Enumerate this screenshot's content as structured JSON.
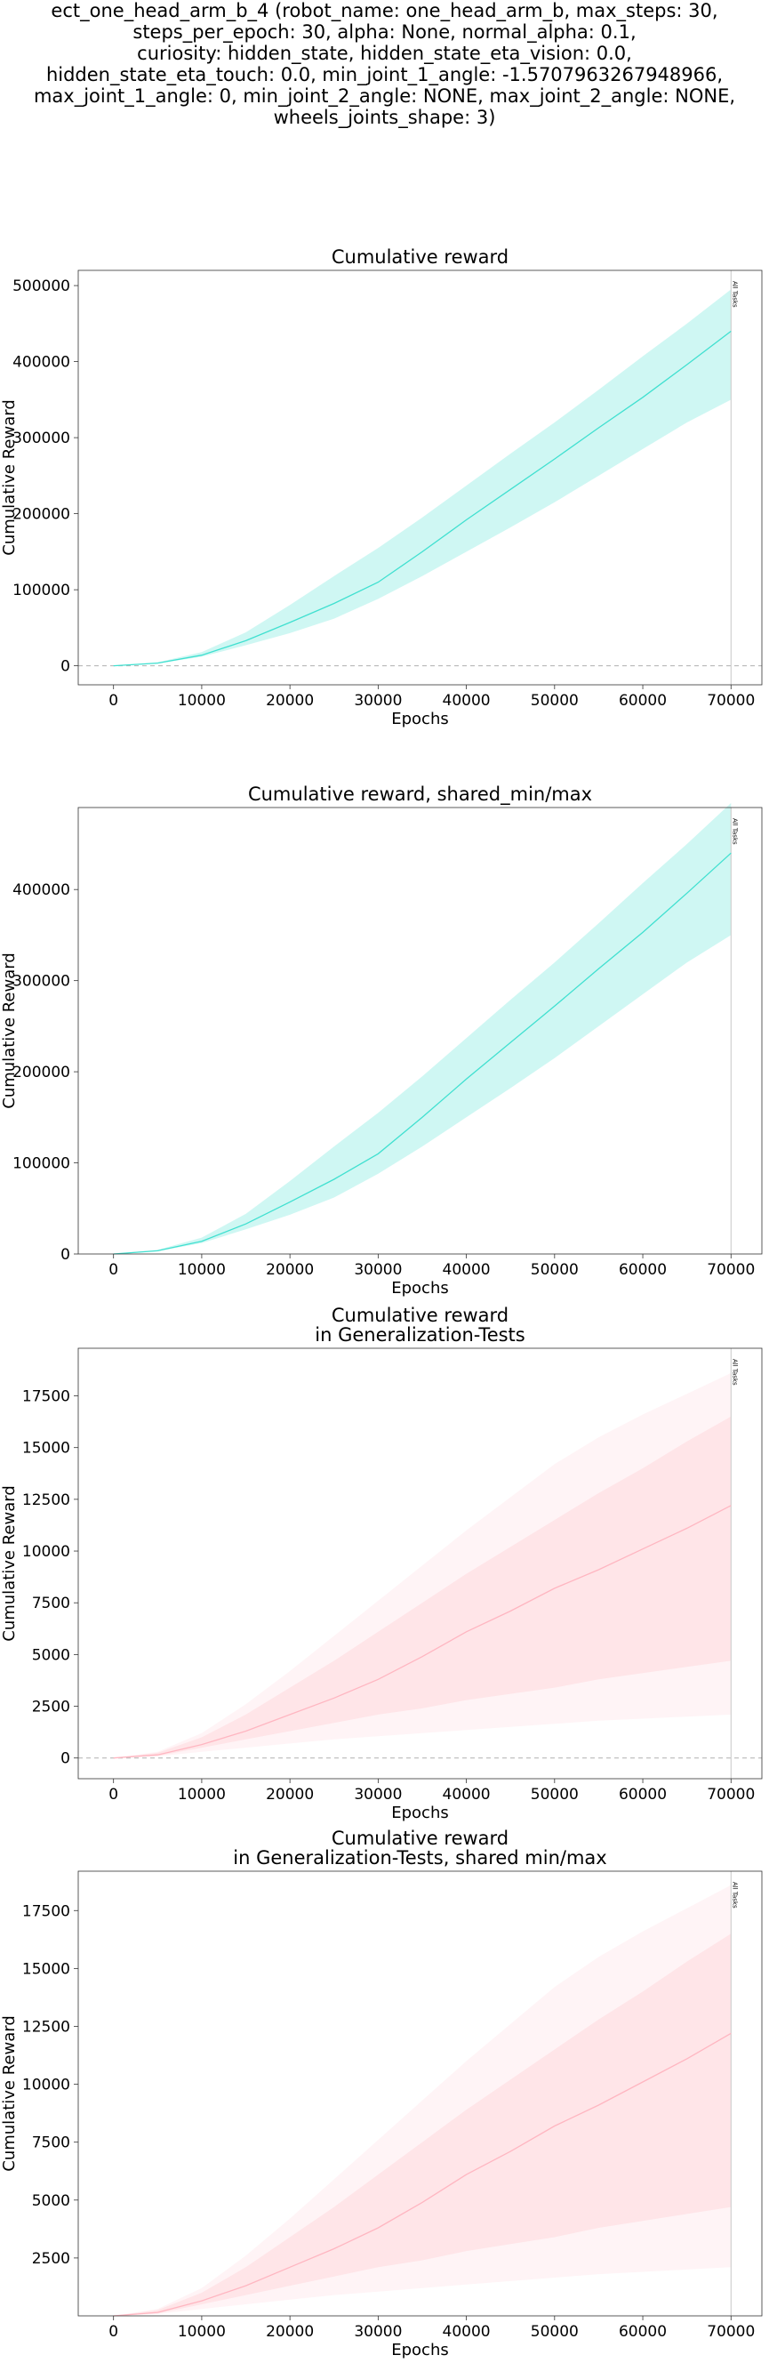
{
  "suptitle_lines": [
    "ect_one_head_arm_b_4 (robot_name: one_head_arm_b, max_steps: 30,",
    "steps_per_epoch: 30, alpha: None, normal_alpha: 0.1,",
    "curiosity: hidden_state, hidden_state_eta_vision: 0.0,",
    "hidden_state_eta_touch: 0.0, min_joint_1_angle: -1.5707963267948966,",
    "max_joint_1_angle: 0, min_joint_2_angle: NONE, max_joint_2_angle: NONE,",
    "wheels_joints_shape: 3)"
  ],
  "chart_data": [
    {
      "type": "line",
      "title_lines": [
        "Cumulative reward"
      ],
      "xlabel": "Epochs",
      "ylabel": "Cumulative Reward",
      "xlim": [
        -4000,
        73500
      ],
      "ylim": [
        -25000,
        520000
      ],
      "xticks": [
        0,
        10000,
        20000,
        30000,
        40000,
        50000,
        60000,
        70000
      ],
      "yticks": [
        0,
        100000,
        200000,
        300000,
        400000,
        500000
      ],
      "color": "#40e0d0",
      "zero_line": true,
      "vline": {
        "x": 70000,
        "label": "All Tasks"
      },
      "series": {
        "x": [
          0,
          5000,
          10000,
          15000,
          20000,
          25000,
          30000,
          35000,
          40000,
          45000,
          50000,
          55000,
          60000,
          65000,
          70000
        ],
        "mean": [
          0,
          3500,
          14000,
          33000,
          57000,
          82000,
          110000,
          150000,
          192000,
          232000,
          272000,
          313000,
          353000,
          396000,
          440000
        ],
        "lower": [
          0,
          3000,
          12000,
          27000,
          43000,
          62000,
          88000,
          118000,
          150000,
          182000,
          215000,
          250000,
          285000,
          320000,
          350000
        ],
        "upper": [
          0,
          4500,
          18000,
          44000,
          80000,
          118000,
          155000,
          195000,
          237000,
          279000,
          320000,
          363000,
          407000,
          450000,
          495000
        ]
      }
    },
    {
      "type": "line",
      "title_lines": [
        "Cumulative reward, shared_min/max"
      ],
      "xlabel": "Epochs",
      "ylabel": "Cumulative Reward",
      "xlim": [
        -4000,
        73500
      ],
      "ylim": [
        0,
        490000
      ],
      "xticks": [
        0,
        10000,
        20000,
        30000,
        40000,
        50000,
        60000,
        70000
      ],
      "yticks": [
        0,
        100000,
        200000,
        300000,
        400000
      ],
      "color": "#40e0d0",
      "zero_line": false,
      "vline": {
        "x": 70000,
        "label": "All Tasks"
      },
      "series": {
        "x": [
          0,
          5000,
          10000,
          15000,
          20000,
          25000,
          30000,
          35000,
          40000,
          45000,
          50000,
          55000,
          60000,
          65000,
          70000
        ],
        "mean": [
          0,
          3500,
          14000,
          33000,
          57000,
          82000,
          110000,
          150000,
          192000,
          232000,
          272000,
          313000,
          353000,
          396000,
          440000
        ],
        "lower": [
          0,
          3000,
          12000,
          27000,
          43000,
          62000,
          88000,
          118000,
          150000,
          182000,
          215000,
          250000,
          285000,
          320000,
          350000
        ],
        "upper": [
          0,
          4500,
          18000,
          44000,
          80000,
          118000,
          155000,
          195000,
          237000,
          279000,
          320000,
          363000,
          407000,
          450000,
          495000
        ]
      }
    },
    {
      "type": "line",
      "title_lines": [
        "Cumulative reward",
        "in Generalization-Tests"
      ],
      "xlabel": "Epochs",
      "ylabel": "Cumulative Reward",
      "xlim": [
        -4000,
        73500
      ],
      "ylim": [
        -1000,
        19800
      ],
      "xticks": [
        0,
        10000,
        20000,
        30000,
        40000,
        50000,
        60000,
        70000
      ],
      "yticks": [
        0,
        2500,
        5000,
        7500,
        10000,
        12500,
        15000,
        17500
      ],
      "color": "#ffb6c1",
      "zero_line": true,
      "vline": {
        "x": 70000,
        "label": "All Tasks"
      },
      "series": {
        "x": [
          0,
          5000,
          10000,
          15000,
          20000,
          25000,
          30000,
          35000,
          40000,
          45000,
          50000,
          55000,
          60000,
          65000,
          70000
        ],
        "mean": [
          0,
          150,
          650,
          1300,
          2100,
          2900,
          3800,
          4900,
          6100,
          7100,
          8200,
          9100,
          10100,
          11100,
          12200
        ],
        "lower1": [
          0,
          80,
          300,
          500,
          700,
          900,
          1050,
          1200,
          1350,
          1500,
          1650,
          1800,
          1900,
          2000,
          2100
        ],
        "upper1": [
          0,
          300,
          1200,
          2600,
          4200,
          5900,
          7600,
          9300,
          11000,
          12600,
          14200,
          15500,
          16600,
          17600,
          18600
        ],
        "lower2": [
          0,
          100,
          500,
          900,
          1300,
          1700,
          2100,
          2400,
          2800,
          3100,
          3400,
          3800,
          4100,
          4400,
          4700
        ],
        "upper2": [
          0,
          250,
          1000,
          2100,
          3400,
          4700,
          6100,
          7500,
          8900,
          10200,
          11500,
          12800,
          14000,
          15300,
          16500
        ]
      }
    },
    {
      "type": "line",
      "title_lines": [
        "Cumulative reward",
        "in Generalization-Tests, shared min/max"
      ],
      "xlabel": "Epochs",
      "ylabel": "Cumulative Reward",
      "xlim": [
        -4000,
        73500
      ],
      "ylim": [
        0,
        19200
      ],
      "xticks": [
        0,
        10000,
        20000,
        30000,
        40000,
        50000,
        60000,
        70000
      ],
      "yticks": [
        2500,
        5000,
        7500,
        10000,
        12500,
        15000,
        17500
      ],
      "color": "#ffb6c1",
      "zero_line": false,
      "vline": {
        "x": 70000,
        "label": "All Tasks"
      },
      "series": {
        "x": [
          0,
          5000,
          10000,
          15000,
          20000,
          25000,
          30000,
          35000,
          40000,
          45000,
          50000,
          55000,
          60000,
          65000,
          70000
        ],
        "mean": [
          0,
          150,
          650,
          1300,
          2100,
          2900,
          3800,
          4900,
          6100,
          7100,
          8200,
          9100,
          10100,
          11100,
          12200
        ],
        "lower1": [
          0,
          80,
          300,
          500,
          700,
          900,
          1050,
          1200,
          1350,
          1500,
          1650,
          1800,
          1900,
          2000,
          2100
        ],
        "upper1": [
          0,
          300,
          1200,
          2600,
          4200,
          5900,
          7600,
          9300,
          11000,
          12600,
          14200,
          15500,
          16600,
          17600,
          18600
        ],
        "lower2": [
          0,
          100,
          500,
          900,
          1300,
          1700,
          2100,
          2400,
          2800,
          3100,
          3400,
          3800,
          4100,
          4400,
          4700
        ],
        "upper2": [
          0,
          250,
          1000,
          2100,
          3400,
          4700,
          6100,
          7500,
          8900,
          10200,
          11500,
          12800,
          14000,
          15300,
          16500
        ]
      }
    }
  ]
}
